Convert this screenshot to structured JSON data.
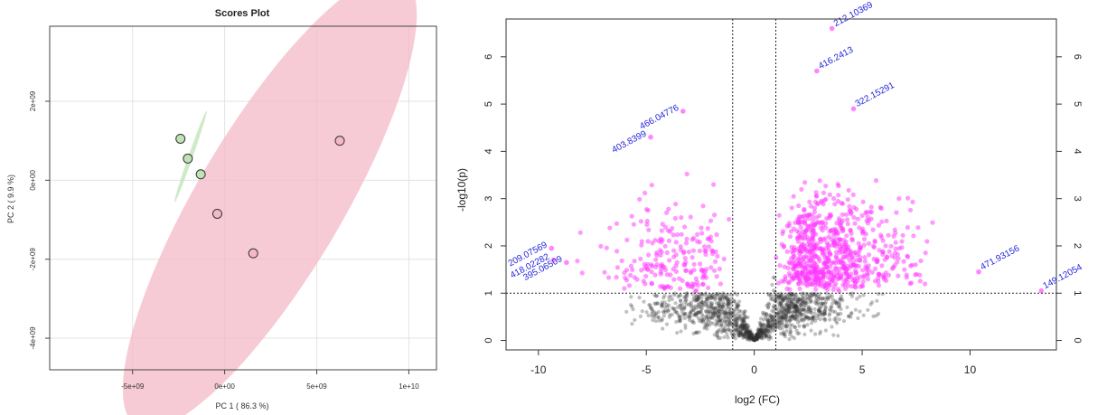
{
  "chart_data": [
    {
      "type": "scatter",
      "title": "Scores Plot",
      "xlabel": "PC 1 ( 86.3 %)",
      "ylabel": "PC 2 ( 9.9 %)",
      "xlim": [
        -9500000000.0,
        11500000000.0
      ],
      "ylim": [
        -4800000000.0,
        3900000000.0
      ],
      "x_ticks": [
        -5000000000.0,
        0,
        5000000000.0,
        10000000000.0
      ],
      "x_tick_labels": [
        "-5e+09",
        "0e+00",
        "5e+09",
        "1e+10"
      ],
      "y_ticks": [
        -4000000000.0,
        -2000000000.0,
        0,
        2000000000.0
      ],
      "y_tick_labels": [
        "-4e+09",
        "-2e+09",
        "0e+00",
        "2e+09"
      ],
      "grid": true,
      "series": [
        {
          "color": "#3aa13a",
          "fill": "#bfe3b4",
          "points": [
            [
              -2400000000.0,
              1050000000.0
            ],
            [
              -2000000000.0,
              550000000.0
            ],
            [
              -1300000000.0,
              150000000.0
            ]
          ],
          "ellipse": {
            "center": [
              -1850000000.0,
              600000000.0
            ],
            "rx": 1450000000.0,
            "ry": 100000000.0,
            "angle_deg": 53
          }
        },
        {
          "color": "#c0394f",
          "fill": "#f4b9c7",
          "points": [
            [
              -400000000.0,
              -850000000.0
            ],
            [
              1550000000.0,
              -1850000000.0
            ],
            [
              6250000000.0,
              1000000000.0
            ]
          ],
          "ellipse": {
            "center": [
              2450000000.0,
              -550000000.0
            ],
            "rx": 9450000000.0,
            "ry": 2750000000.0,
            "angle_deg": 34
          }
        }
      ]
    },
    {
      "type": "scatter",
      "title": "",
      "xlabel": "log2 (FC)",
      "ylabel": "-log10(p)",
      "xlim": [
        -11.5,
        14.0
      ],
      "ylim": [
        -0.2,
        6.8
      ],
      "x_ticks": [
        -10,
        -5,
        0,
        5,
        10
      ],
      "x_tick_labels": [
        "-10",
        "-5",
        "0",
        "5",
        "10"
      ],
      "y_ticks": [
        0,
        1,
        2,
        3,
        4,
        5,
        6
      ],
      "y_tick_labels": [
        "0",
        "1",
        "2",
        "3",
        "4",
        "5",
        "6"
      ],
      "fc_threshold": 1,
      "p_threshold": 1,
      "significant_color": "#ff33ff",
      "nonsignificant_color": "#333333",
      "significant_points_shown": 900,
      "nonsignificant_points_shown": 1300,
      "labeled_points": [
        {
          "label": "212.10369",
          "x": 3.6,
          "y": 6.6
        },
        {
          "label": "416.2413",
          "x": 2.9,
          "y": 5.7
        },
        {
          "label": "466.04776",
          "x": -3.3,
          "y": 4.85
        },
        {
          "label": "322.15291",
          "x": 4.6,
          "y": 4.9
        },
        {
          "label": "403.8399",
          "x": -4.8,
          "y": 4.3
        },
        {
          "label": "209.07569",
          "x": -9.4,
          "y": 1.95
        },
        {
          "label": "418.02282",
          "x": -9.3,
          "y": 1.7
        },
        {
          "label": "395.06509",
          "x": -8.7,
          "y": 1.65
        },
        {
          "label": "471.93156",
          "x": 10.4,
          "y": 1.45
        },
        {
          "label": "149.12054",
          "x": 13.3,
          "y": 1.05
        }
      ]
    }
  ]
}
